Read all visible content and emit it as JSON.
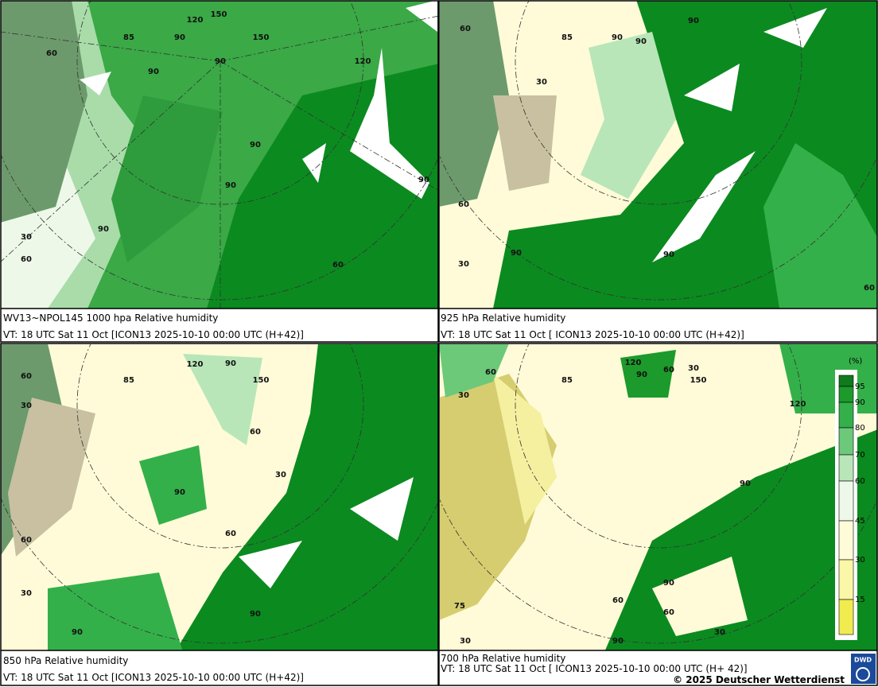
{
  "panels": [
    {
      "caption": "WV13~NPOL145 1000 hpa Relative humidity",
      "valid_time": "VT: 18 UTC Sat 11 Oct [ICON13 2025-10-10 00:00 UTC (H+42)]",
      "map_labels": [
        "60",
        "90",
        "90",
        "90",
        "90",
        "30",
        "60",
        "85",
        "90",
        "120",
        "150",
        "150",
        "120",
        "90",
        "60",
        "90"
      ]
    },
    {
      "caption": "925 hPa Relative humidity",
      "valid_time": "VT: 18 UTC Sat 11 Oct [ ICON13 2025-10-10 00:00 UTC (H+42)]",
      "map_labels": [
        "60",
        "90",
        "90",
        "30",
        "60",
        "90",
        "30",
        "90",
        "60",
        "85",
        "90"
      ]
    },
    {
      "caption": "850 hPa  Relative humidity",
      "valid_time": "VT: 18 UTC Sat 11 Oct [ICON13 2025-10-10 00:00 UTC (H+42)]",
      "map_labels": [
        "60",
        "30",
        "90",
        "60",
        "30",
        "90",
        "60",
        "60",
        "30",
        "90",
        "90",
        "85",
        "120",
        "150"
      ]
    },
    {
      "caption": "700 hPa Relative humidity",
      "valid_time": "VT: 18 UTC Sat 11 Oct [ ICON13 2025-10-10 00:00 UTC (H+ 42)]",
      "map_labels": [
        "60",
        "30",
        "90",
        "60",
        "30",
        "90",
        "90",
        "60",
        "60",
        "90",
        "30",
        "30",
        "85",
        "120",
        "150",
        "120",
        "75"
      ]
    }
  ],
  "legend": {
    "unit": "(%)",
    "levels": [
      "95",
      "90",
      "80",
      "70",
      "60",
      "45",
      "30",
      "15"
    ]
  },
  "footer": {
    "copyright": "© 2025 Deutscher Wetterdienst",
    "logo": "DWD"
  }
}
